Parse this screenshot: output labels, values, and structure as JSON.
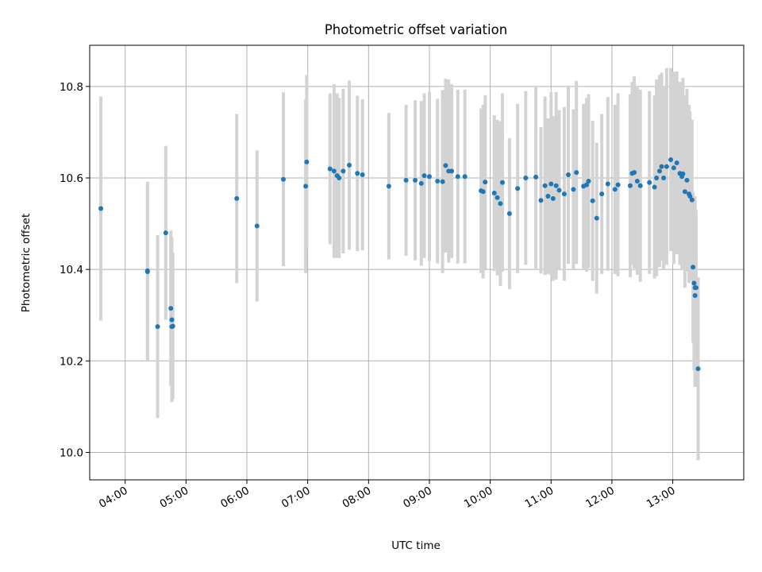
{
  "chart_data": {
    "type": "scatter",
    "title": "Photometric offset variation",
    "xlabel": "UTC time",
    "ylabel": "Photometric offset",
    "grid": true,
    "x_ticks": [
      "04:00",
      "05:00",
      "06:00",
      "07:00",
      "08:00",
      "09:00",
      "10:00",
      "11:00",
      "12:00",
      "13:00"
    ],
    "y_ticks": [
      "10.0",
      "10.2",
      "10.4",
      "10.6",
      "10.8"
    ],
    "xlim": [
      "03:25",
      "14:10"
    ],
    "ylim": [
      9.94,
      10.89
    ],
    "colors": {
      "point": "#1f77b4",
      "errorbar": "#d3d3d3",
      "grid": "#b0b0b0"
    },
    "series": [
      {
        "x": [
          "03:36",
          "04:22",
          "04:22",
          "04:32",
          "04:40",
          "04:45",
          "04:46",
          "04:46",
          "04:47",
          "05:50",
          "06:10",
          "06:36",
          "06:58",
          "06:59",
          "07:22",
          "07:26",
          "07:29",
          "07:31",
          "07:35",
          "07:41",
          "07:49",
          "07:54",
          "08:20",
          "08:37",
          "08:46",
          "08:52",
          "08:55",
          "09:00",
          "09:08",
          "09:13",
          "09:16",
          "09:19",
          "09:22",
          "09:28",
          "09:35",
          "09:51",
          "09:53",
          "09:55",
          "10:04",
          "10:07",
          "10:10",
          "10:12",
          "10:19",
          "10:27",
          "10:35",
          "10:45",
          "10:50",
          "10:54",
          "10:57",
          "11:00",
          "11:02",
          "11:05",
          "11:08",
          "11:13",
          "11:17",
          "11:22",
          "11:25",
          "11:32",
          "11:35",
          "11:37",
          "11:41",
          "11:45",
          "11:50",
          "11:56",
          "12:03",
          "12:06",
          "12:18",
          "12:20",
          "12:22",
          "12:25",
          "12:28",
          "12:37",
          "12:42",
          "12:44",
          "12:47",
          "12:49",
          "12:51",
          "12:54",
          "12:58",
          "13:01",
          "13:04",
          "13:07",
          "13:09",
          "13:10",
          "13:12",
          "13:14",
          "13:16",
          "13:17",
          "13:19",
          "13:20"
        ],
        "y": [
          10.533,
          10.395,
          10.397,
          10.275,
          10.48,
          10.315,
          10.29,
          10.275,
          10.276,
          10.555,
          10.495,
          10.597,
          10.582,
          10.635,
          10.62,
          10.615,
          10.605,
          10.6,
          10.615,
          10.628,
          10.61,
          10.607,
          10.582,
          10.595,
          10.595,
          10.588,
          10.605,
          10.603,
          10.593,
          10.592,
          10.627,
          10.615,
          10.615,
          10.603,
          10.603,
          10.572,
          10.57,
          10.591,
          10.567,
          10.557,
          10.544,
          10.59,
          10.522,
          10.577,
          10.6,
          10.602,
          10.551,
          10.583,
          10.56,
          10.587,
          10.555,
          10.583,
          10.573,
          10.565,
          10.607,
          10.575,
          10.612,
          10.582,
          10.585,
          10.593,
          10.55,
          10.512,
          10.565,
          10.587,
          10.575,
          10.585,
          10.583,
          10.61,
          10.612,
          10.593,
          10.583,
          10.59,
          10.58,
          10.6,
          10.615,
          10.625,
          10.6,
          10.625,
          10.64,
          10.622,
          10.633,
          10.61,
          10.603,
          10.609,
          10.57,
          10.595,
          10.565,
          10.56,
          10.552,
          10.405
        ],
        "yerr": [
          0.245,
          0.195,
          0.195,
          0.2,
          0.19,
          0.17,
          0.18,
          0.165,
          0.16,
          0.185,
          0.165,
          0.19,
          0.19,
          0.19,
          0.165,
          0.19,
          0.18,
          0.175,
          0.18,
          0.185,
          0.17,
          0.165,
          0.16,
          0.165,
          0.175,
          0.18,
          0.18,
          0.185,
          0.18,
          0.2,
          0.19,
          0.2,
          0.19,
          0.19,
          0.19,
          0.18,
          0.19,
          0.19,
          0.17,
          0.17,
          0.18,
          0.195,
          0.165,
          0.185,
          0.19,
          0.2,
          0.16,
          0.195,
          0.17,
          0.2,
          0.18,
          0.205,
          0.175,
          0.19,
          0.195,
          0.175,
          0.2,
          0.18,
          0.19,
          0.19,
          0.175,
          0.165,
          0.175,
          0.19,
          0.185,
          0.2,
          0.2,
          0.2,
          0.21,
          0.205,
          0.21,
          0.2,
          0.2,
          0.215,
          0.21,
          0.205,
          0.2,
          0.215,
          0.2,
          0.21,
          0.2,
          0.2,
          0.205,
          0.21,
          0.21,
          0.2,
          0.195,
          0.185,
          0.175,
          0.165
        ]
      },
      {
        "x": [
          "13:21",
          "13:22",
          "13:22",
          "13:23",
          "13:25"
        ],
        "y": [
          10.37,
          10.36,
          10.343,
          10.36,
          10.183
        ],
        "yerr": [
          0.19,
          0.2,
          0.2,
          0.17,
          0.2
        ]
      }
    ]
  }
}
